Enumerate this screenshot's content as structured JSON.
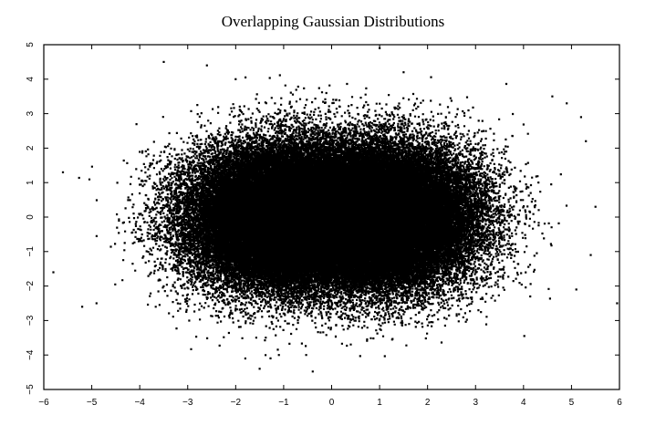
{
  "chart_data": {
    "type": "scatter",
    "title": "Overlapping Gaussian Distributions",
    "xlabel": "",
    "ylabel": "",
    "xlim": [
      -6,
      6
    ],
    "ylim": [
      -5,
      5
    ],
    "x_ticks": [
      -6,
      -5,
      -4,
      -3,
      -2,
      -1,
      0,
      1,
      2,
      3,
      4,
      5,
      6
    ],
    "y_ticks": [
      -5,
      -4,
      -3,
      -2,
      -1,
      0,
      1,
      2,
      3,
      4,
      5
    ],
    "grid": false,
    "legend": "none",
    "marker_color": "#000000",
    "series": [
      {
        "distribution": "gaussian",
        "mean": [
          -1.0,
          0.0
        ],
        "std": [
          1.0,
          1.0
        ],
        "point_count": 50000
      },
      {
        "distribution": "gaussian",
        "mean": [
          1.0,
          0.0
        ],
        "std": [
          1.0,
          1.0
        ],
        "point_count": 50000
      }
    ],
    "visible_outliers": [
      [
        -5.8,
        -1.6
      ],
      [
        -5.6,
        1.3
      ],
      [
        -5.2,
        -2.6
      ],
      [
        -4.9,
        -2.5
      ],
      [
        -3.5,
        4.5
      ],
      [
        -2.6,
        4.4
      ],
      [
        -2.0,
        4.0
      ],
      [
        -1.8,
        -4.1
      ],
      [
        -1.5,
        -4.4
      ],
      [
        -1.1,
        -4.0
      ],
      [
        1.0,
        4.9
      ],
      [
        1.5,
        4.2
      ],
      [
        4.9,
        3.3
      ],
      [
        5.2,
        2.9
      ],
      [
        5.3,
        2.2
      ],
      [
        5.5,
        0.3
      ],
      [
        5.4,
        -1.1
      ],
      [
        5.1,
        -2.1
      ],
      [
        5.95,
        -2.5
      ],
      [
        4.6,
        3.5
      ]
    ]
  }
}
